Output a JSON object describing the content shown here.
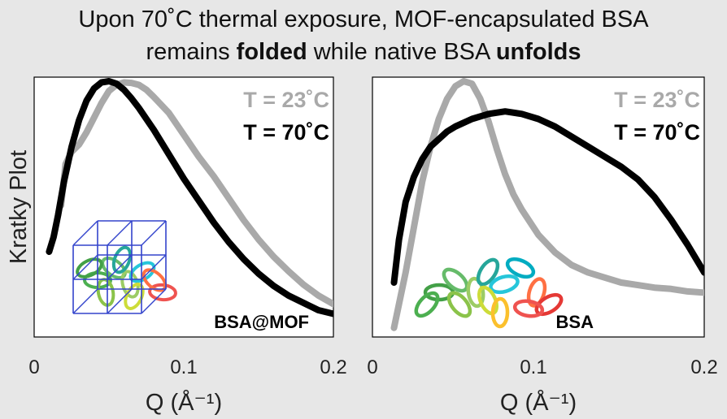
{
  "title": {
    "line1": "Upon 70˚C thermal exposure, MOF-encapsulated BSA",
    "line2_pre": "remains ",
    "line2_bold1": "folded",
    "line2_mid": " while native BSA ",
    "line2_bold2": "unfolds"
  },
  "colors": {
    "t23": "#a9a9a9",
    "t70": "#000000",
    "background": "#e7e7e7"
  },
  "chart_data": [
    {
      "type": "line",
      "ylabel": "Kratky Plot",
      "xlabel": "Q (Å⁻¹)",
      "xlim": [
        0,
        0.2
      ],
      "ylim": [
        0,
        1
      ],
      "xticks": [
        "0",
        "0.1",
        "0.2"
      ],
      "legend_placement": "top-right",
      "panel_label": "BSA@MOF",
      "icon": "bsa-mof-cage-icon",
      "series": [
        {
          "name": "T = 23˚C",
          "color": "#a9a9a9",
          "x": [
            0.018,
            0.021,
            0.025,
            0.03,
            0.035,
            0.04,
            0.045,
            0.05,
            0.055,
            0.06,
            0.065,
            0.07,
            0.075,
            0.08,
            0.09,
            0.1,
            0.11,
            0.12,
            0.13,
            0.14,
            0.15,
            0.16,
            0.17,
            0.18,
            0.19,
            0.2
          ],
          "y": [
            0.49,
            0.66,
            0.71,
            0.74,
            0.79,
            0.85,
            0.91,
            0.96,
            0.985,
            0.995,
            0.993,
            0.985,
            0.965,
            0.935,
            0.87,
            0.78,
            0.69,
            0.61,
            0.52,
            0.43,
            0.35,
            0.28,
            0.22,
            0.165,
            0.12,
            0.085
          ]
        },
        {
          "name": "T = 70˚C",
          "color": "#000000",
          "x": [
            0.01,
            0.013,
            0.016,
            0.02,
            0.025,
            0.03,
            0.035,
            0.04,
            0.045,
            0.05,
            0.055,
            0.06,
            0.065,
            0.07,
            0.08,
            0.09,
            0.1,
            0.11,
            0.12,
            0.13,
            0.14,
            0.15,
            0.16,
            0.17,
            0.18,
            0.19,
            0.2
          ],
          "y": [
            0.3,
            0.36,
            0.45,
            0.59,
            0.73,
            0.84,
            0.92,
            0.97,
            0.995,
            1.0,
            0.99,
            0.965,
            0.93,
            0.89,
            0.8,
            0.7,
            0.6,
            0.51,
            0.42,
            0.34,
            0.27,
            0.21,
            0.16,
            0.12,
            0.09,
            0.06,
            0.045
          ]
        }
      ]
    },
    {
      "type": "line",
      "xlabel": "Q (Å⁻¹)",
      "xlim": [
        0,
        0.2
      ],
      "ylim": [
        0,
        1
      ],
      "xticks": [
        "0",
        "0.1",
        "0.2"
      ],
      "legend_placement": "top-right",
      "panel_label": "BSA",
      "icon": "bsa-protein-icon",
      "series": [
        {
          "name": "T = 23˚C",
          "color": "#a9a9a9",
          "x": [
            0.013,
            0.02,
            0.025,
            0.03,
            0.035,
            0.04,
            0.045,
            0.05,
            0.055,
            0.06,
            0.065,
            0.07,
            0.075,
            0.08,
            0.085,
            0.09,
            0.1,
            0.11,
            0.12,
            0.13,
            0.14,
            0.15,
            0.16,
            0.17,
            0.18,
            0.19,
            0.2
          ],
          "y": [
            0.02,
            0.24,
            0.42,
            0.6,
            0.74,
            0.85,
            0.93,
            0.98,
            1.0,
            0.99,
            0.93,
            0.84,
            0.73,
            0.63,
            0.55,
            0.49,
            0.39,
            0.32,
            0.27,
            0.24,
            0.22,
            0.2,
            0.19,
            0.18,
            0.175,
            0.165,
            0.16
          ]
        },
        {
          "name": "T = 70˚C",
          "color": "#000000",
          "x": [
            0.013,
            0.016,
            0.02,
            0.025,
            0.03,
            0.035,
            0.04,
            0.045,
            0.05,
            0.06,
            0.07,
            0.08,
            0.09,
            0.1,
            0.11,
            0.12,
            0.13,
            0.14,
            0.15,
            0.16,
            0.17,
            0.18,
            0.19,
            0.2
          ],
          "y": [
            0.2,
            0.37,
            0.52,
            0.62,
            0.69,
            0.74,
            0.77,
            0.8,
            0.82,
            0.85,
            0.87,
            0.88,
            0.87,
            0.85,
            0.82,
            0.78,
            0.74,
            0.7,
            0.66,
            0.61,
            0.54,
            0.45,
            0.35,
            0.24
          ]
        }
      ]
    }
  ]
}
